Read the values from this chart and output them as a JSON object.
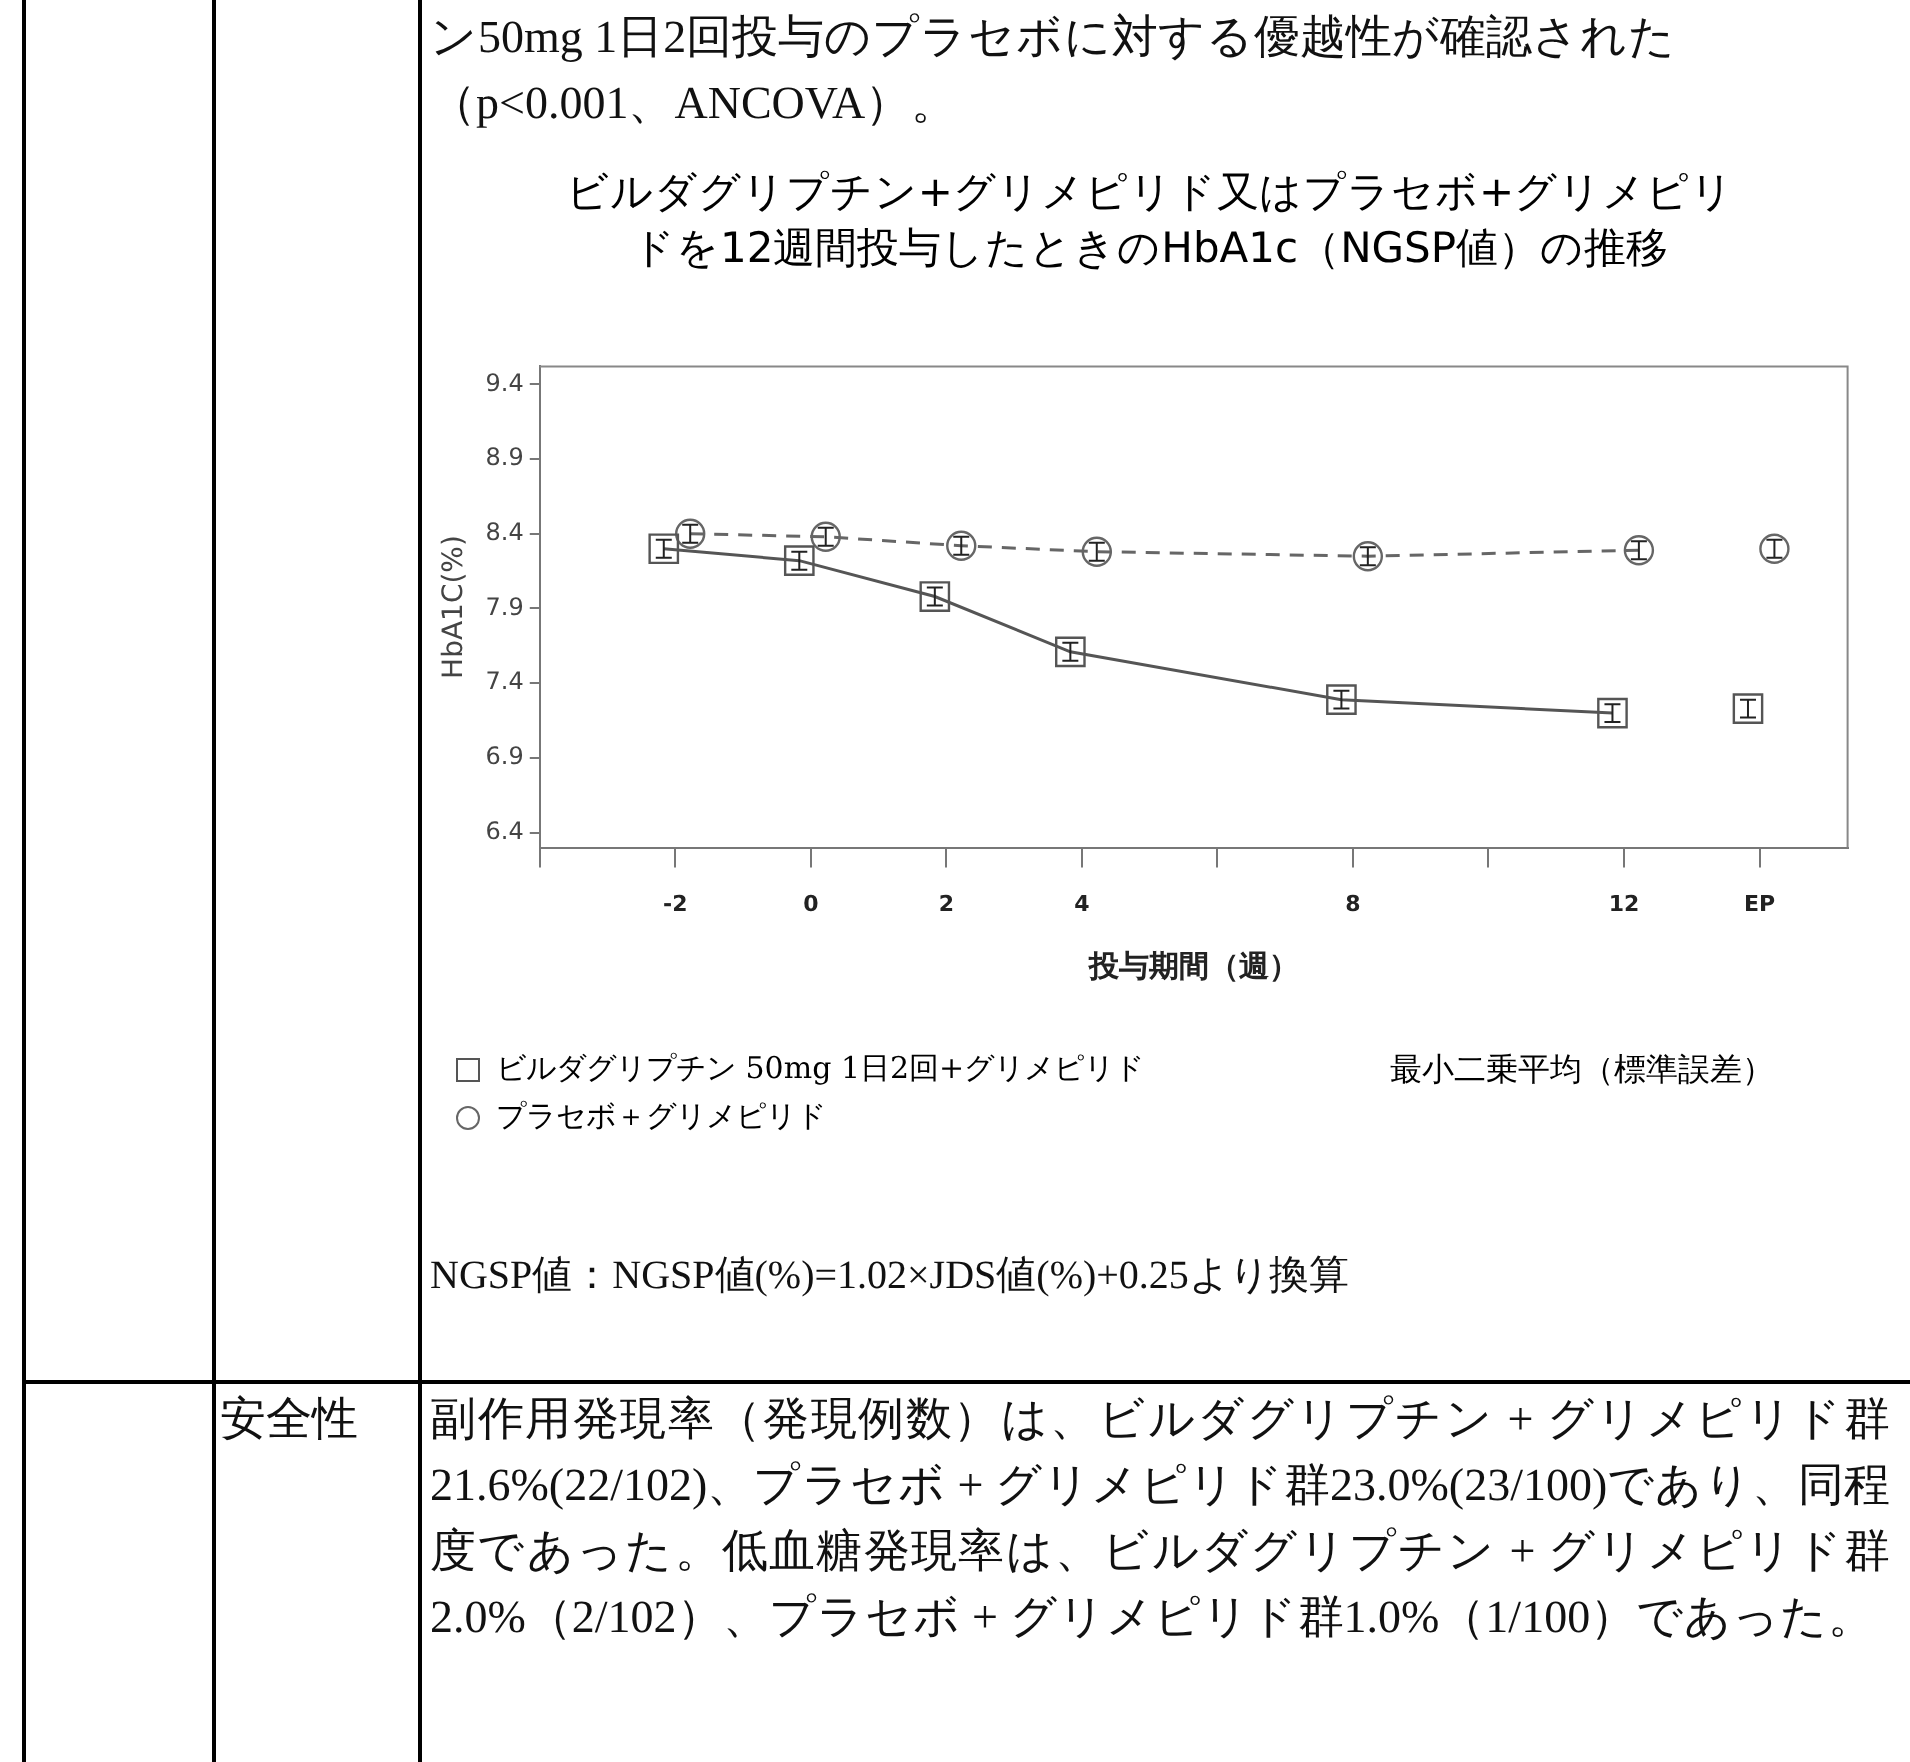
{
  "chart_data": {
    "type": "line",
    "title": "ビルダグリプチン+グリメピリド又はプラセボ+グリメピリドを12週間投与したときのHbA1c（NGSP値）の推移",
    "xlabel": "投与期間（週）",
    "ylabel": "HbA1C(%)",
    "xlim": [
      -4,
      15.3
    ],
    "xticks": [
      {
        "value": -4,
        "label": null
      },
      -2,
      0,
      2,
      4,
      {
        "value": 6,
        "label": null
      },
      8,
      {
        "value": 10,
        "label": null
      },
      12,
      {
        "value": 14,
        "label": "EP"
      }
    ],
    "ylim": [
      6.3,
      9.52
    ],
    "yticks": [
      6.4,
      6.9,
      7.4,
      7.9,
      8.4,
      8.9,
      9.4
    ],
    "series": [
      {
        "name": "ビルダグリプチン 50mg 1日2回+グリメピリド",
        "type": "line",
        "color": "#555555",
        "marker": "square",
        "line_style": "solid",
        "x": [
          -2.17,
          -0.17,
          1.83,
          3.83,
          7.83,
          11.83
        ],
        "values": [
          8.3,
          8.22,
          7.98,
          7.61,
          7.29,
          7.2
        ],
        "errors": [
          0.06,
          0.06,
          0.06,
          0.06,
          0.06,
          0.06
        ]
      },
      {
        "name": "プラセボ＋グリメピリド",
        "type": "line",
        "color": "#666666",
        "marker": "circle",
        "line_style": "dashed",
        "x": [
          -1.78,
          0.22,
          2.22,
          4.22,
          8.22,
          12.22
        ],
        "values": [
          8.4,
          8.38,
          8.32,
          8.28,
          8.25,
          8.29
        ],
        "errors": [
          0.06,
          0.06,
          0.06,
          0.06,
          0.06,
          0.06
        ]
      },
      {
        "type": "scatter",
        "color": "#555555",
        "marker": "square",
        "x": [
          13.83
        ],
        "values": [
          7.23
        ],
        "errors": [
          0.06
        ]
      },
      {
        "type": "scatter",
        "color": "#666666",
        "marker": "circle",
        "x": [
          14.22
        ],
        "values": [
          8.3
        ],
        "errors": [
          0.06
        ]
      }
    ],
    "grid": false,
    "legend": "bottom",
    "annotations": [
      "ン50mg 1日2回投与のプラセボに対する優越性が確認された（p<0.001、ANCOVA）。",
      "最小二乗平均（標準誤差）",
      "NGSP値：NGSP値(%)=1.02×JDS値(%)+0.25より換算",
      "安全性",
      "副作用発現率（発現例数）は、ビルダグリプチン + グリメピリド群21.6%(22/102)、プラセボ + グリメピリド群23.0%(23/100)であり、同程度であった。低血糖発現率は、ビルダグリプチン + グリメピリド群2.0%（2/102）、プラセボ + グリメピリド群1.0%（1/100）であった。"
    ]
  }
}
